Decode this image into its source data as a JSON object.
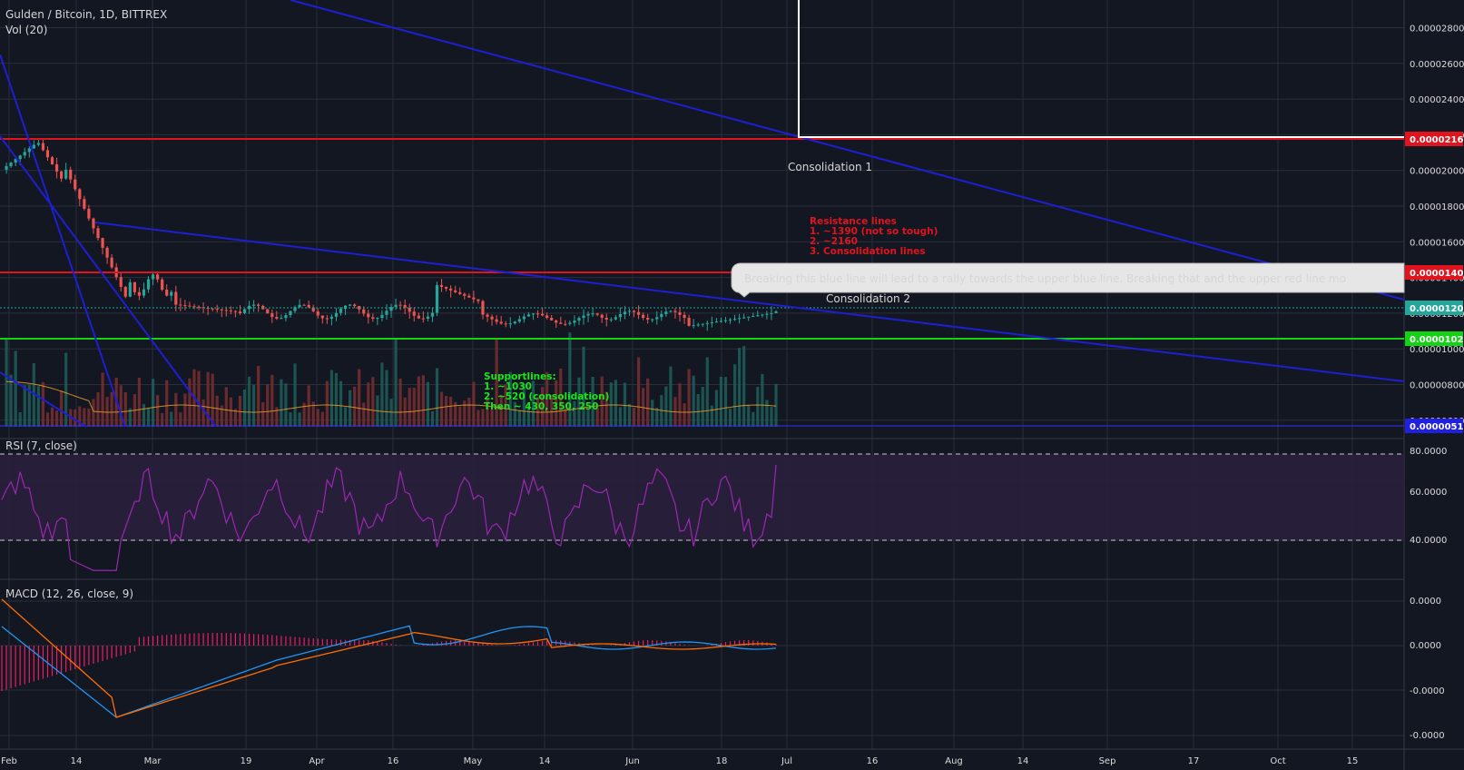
{
  "header": {
    "symbol_line": "Gulden / Bitcoin, 1D, BITTREX",
    "volume_label": "Vol (20)",
    "rsi_label": "RSI (7, close)",
    "macd_label": "MACD (12, 26, close, 9)"
  },
  "annotations": {
    "consolidation_1": "Consolidation 1",
    "consolidation_2": "Consolidation 2",
    "resistance_title": "Resistance lines",
    "resistance_1": "1. ~1390 (not so tough)",
    "resistance_2": "2. ~2160",
    "resistance_3": "3. Consolidation lines",
    "support_title": "Supportlines:",
    "support_1": "1. ~1030",
    "support_2": "2. ~520 (consolidation)",
    "support_3": "Then ~ 430, 350, 250",
    "callout": "Breaking this blue line will lead to a rally towards the upper blue line. Breaking that and the upper red line mo"
  },
  "colors": {
    "background": "#131722",
    "grid": "#2a2e39",
    "resistance": "#e0141e",
    "support": "#14d214",
    "trendline": "#1e1ed2",
    "up_candle": "#26a69a",
    "down_candle": "#ef5350",
    "rsi_line": "#9c27b0",
    "macd_line": "#2196f3",
    "signal_line": "#ff6d00",
    "histogram": "#e91e63"
  },
  "chart_data": {
    "type": "candlestick",
    "symbol": "Gulden / Bitcoin",
    "interval": "1D",
    "exchange": "BITTREX",
    "x_tick_labels": [
      "Feb",
      "14",
      "Mar",
      "19",
      "Apr",
      "16",
      "May",
      "14",
      "Jun",
      "18",
      "Jul",
      "16",
      "Aug",
      "14",
      "Sep",
      "17",
      "Oct",
      "15"
    ],
    "price_axis": {
      "ticks": [
        "0.00002800",
        "0.00002600",
        "0.00002400",
        "0.00002200",
        "0.00002000",
        "0.00001800",
        "0.00001600",
        "0.00001400",
        "0.00001200",
        "0.00001000",
        "0.00000800",
        "0.00000600"
      ],
      "ylim": [
        5.5e-06,
        2.88e-05
      ]
    },
    "price_labels": {
      "resistance_upper": "0.00002166",
      "resistance_lower": "0.00001408",
      "last_price": "0.00001202",
      "support": "0.00001026",
      "volume_marker": "0.00000517"
    },
    "horizontal_lines": [
      {
        "role": "resistance",
        "price": 2.166e-05
      },
      {
        "role": "resistance",
        "price": 1.408e-05
      },
      {
        "role": "support",
        "price": 1.026e-05
      },
      {
        "role": "last",
        "price": 1.202e-05
      }
    ],
    "rsi_axis": {
      "ticks": [
        "80.0000",
        "60.0000",
        "40.0000"
      ],
      "band": [
        40,
        80
      ]
    },
    "macd_axis": {
      "ticks": [
        "0.0000",
        "0.0000",
        "-0.0000",
        "-0.0000"
      ]
    }
  }
}
